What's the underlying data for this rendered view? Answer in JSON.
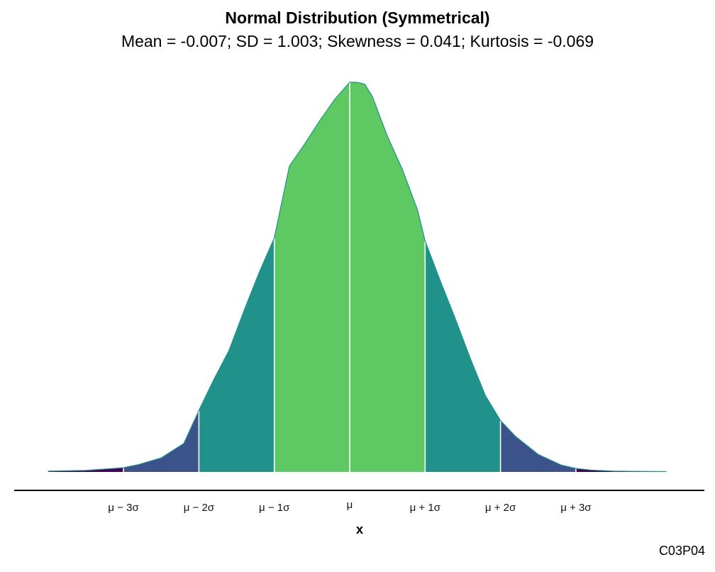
{
  "chart_data": {
    "type": "area",
    "title": "Normal Distribution (Symmetrical)",
    "subtitle": "Mean = -0.007; SD = 1.003; Skewness = 0.041; Kurtosis = -0.069",
    "xlabel": "x",
    "ylabel": "",
    "caption": "C03P04",
    "stats": {
      "mean": -0.007,
      "sd": 1.003,
      "skewness": 0.041,
      "kurtosis": -0.069
    },
    "xlim": [
      -4.0,
      4.2
    ],
    "ylim": [
      0,
      1.0
    ],
    "x_ticks": [
      {
        "value": -3,
        "label": "μ − 3σ"
      },
      {
        "value": -2,
        "label": "μ − 2σ"
      },
      {
        "value": -1,
        "label": "μ − 1σ"
      },
      {
        "value": 0,
        "label": "μ"
      },
      {
        "value": 1,
        "label": "μ + 1σ"
      },
      {
        "value": 2,
        "label": "μ + 2σ"
      },
      {
        "value": 3,
        "label": "μ + 3σ"
      }
    ],
    "density_relative": {
      "x": [
        -4.0,
        -3.5,
        -3.2,
        -3.0,
        -2.8,
        -2.5,
        -2.2,
        -2.0,
        -1.8,
        -1.6,
        -1.4,
        -1.2,
        -1.0,
        -0.8,
        -0.6,
        -0.4,
        -0.2,
        0.0,
        0.1,
        0.2,
        0.3,
        0.5,
        0.7,
        0.9,
        1.0,
        1.2,
        1.4,
        1.6,
        1.8,
        2.0,
        2.2,
        2.5,
        2.8,
        3.0,
        3.2,
        3.5,
        4.2
      ],
      "y": [
        0.002,
        0.004,
        0.008,
        0.011,
        0.019,
        0.036,
        0.073,
        0.158,
        0.238,
        0.312,
        0.415,
        0.512,
        0.601,
        0.785,
        0.841,
        0.901,
        0.956,
        1.0,
        1.0,
        0.995,
        0.964,
        0.862,
        0.776,
        0.672,
        0.593,
        0.491,
        0.394,
        0.291,
        0.196,
        0.132,
        0.091,
        0.045,
        0.018,
        0.009,
        0.005,
        0.002,
        0.001
      ]
    },
    "bands": [
      {
        "from": -4.0,
        "to": -3,
        "color": "#440154"
      },
      {
        "from": -3,
        "to": -2,
        "color": "#3b528b"
      },
      {
        "from": -2,
        "to": -1,
        "color": "#21918c"
      },
      {
        "from": -1,
        "to": 1,
        "color": "#5ec962"
      },
      {
        "from": 1,
        "to": 2,
        "color": "#21918c"
      },
      {
        "from": 2,
        "to": 3,
        "color": "#3b528b"
      },
      {
        "from": 3,
        "to": 4.2,
        "color": "#440154"
      }
    ],
    "divider_lines_at": [
      -3,
      -2,
      -1,
      0,
      1,
      2,
      3
    ],
    "outline_color": "#21918c",
    "grid": false,
    "legend": "none"
  }
}
